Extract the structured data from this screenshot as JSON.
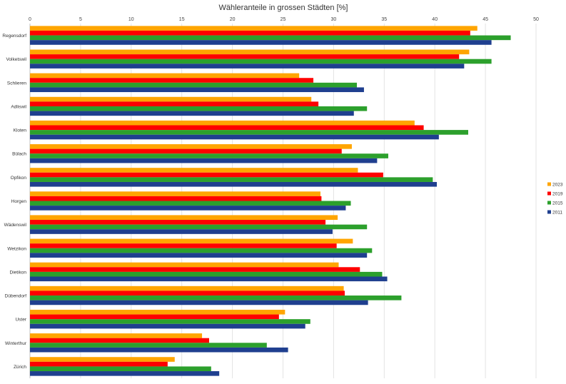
{
  "chart_data": {
    "type": "bar",
    "orientation": "horizontal",
    "title": "Wähleranteile in grossen Städten [%]",
    "xlabel": "",
    "ylabel": "",
    "xlim": [
      0,
      50
    ],
    "xticks": [
      0,
      5,
      10,
      15,
      20,
      25,
      30,
      35,
      40,
      45,
      50
    ],
    "x_axis_position": "top",
    "grid": true,
    "legend_position": "right",
    "categories": [
      "Regensdorf",
      "Volketswil",
      "Schlieren",
      "Adliswil",
      "Kloten",
      "Bülach",
      "Opfikon",
      "Horgen",
      "Wädenswil",
      "Wetzikon",
      "Dietikon",
      "Dübendorf",
      "Uster",
      "Winterthur",
      "Zürich"
    ],
    "series": [
      {
        "name": "2023",
        "color": "#FFA500",
        "values": [
          44.2,
          43.4,
          26.6,
          27.8,
          38.0,
          31.8,
          32.4,
          28.7,
          30.4,
          31.9,
          30.5,
          31.0,
          25.2,
          17.0,
          14.3
        ]
      },
      {
        "name": "2019",
        "color": "#FF0000",
        "values": [
          43.5,
          42.4,
          28.0,
          28.5,
          38.9,
          30.8,
          34.9,
          28.8,
          29.2,
          30.3,
          32.6,
          31.1,
          24.6,
          17.7,
          13.6
        ]
      },
      {
        "name": "2015",
        "color": "#2CA02C",
        "values": [
          47.5,
          45.6,
          32.3,
          33.3,
          43.3,
          35.4,
          39.8,
          31.7,
          33.3,
          33.8,
          34.8,
          36.7,
          27.7,
          23.4,
          17.9
        ]
      },
      {
        "name": "2011",
        "color": "#1F3F8F",
        "values": [
          45.6,
          42.9,
          33.0,
          32.0,
          40.4,
          34.3,
          40.2,
          31.2,
          29.9,
          33.3,
          35.3,
          33.4,
          27.2,
          25.5,
          18.7
        ]
      }
    ]
  }
}
